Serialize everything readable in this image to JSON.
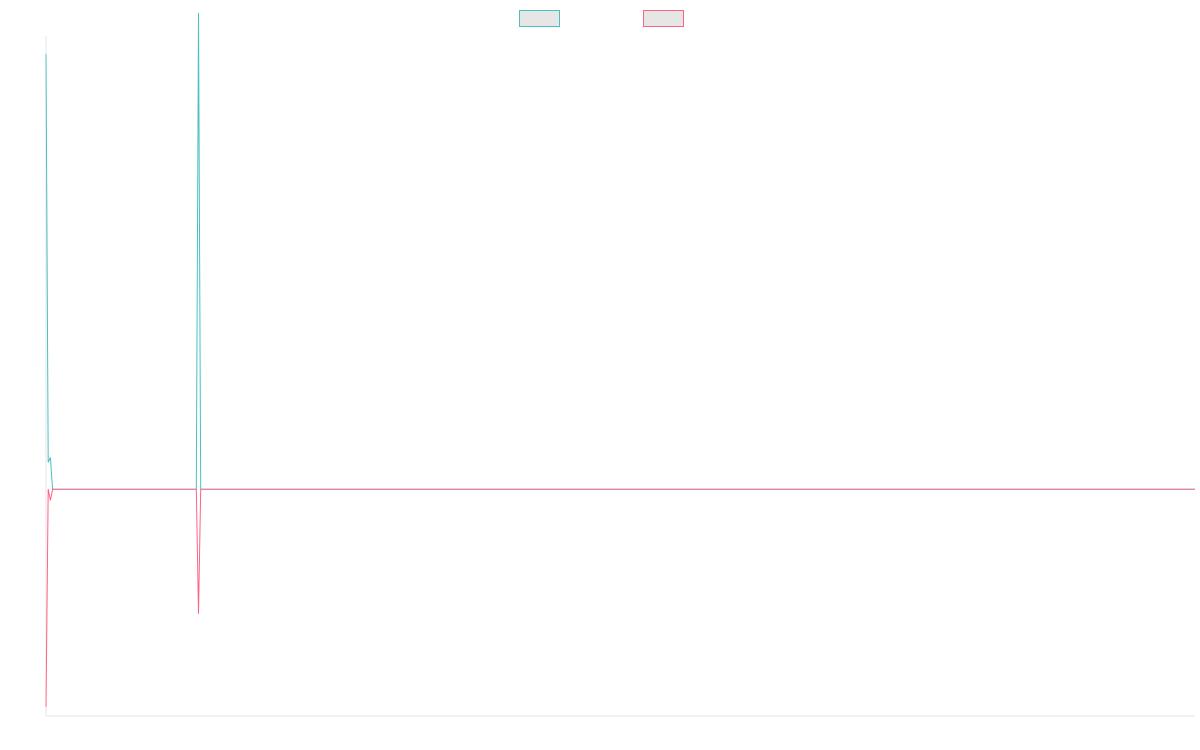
{
  "chart_data": {
    "type": "line",
    "title": "",
    "xlabel": "",
    "ylabel": "",
    "xlim": [
      0,
      260
    ],
    "ylim": [
      -250,
      500
    ],
    "grid": false,
    "legend": {
      "placement": "top-center"
    },
    "series": [
      {
        "color": "#4bc0c0",
        "fill": "#e6e6e6",
        "points": [
          [
            0,
            480
          ],
          [
            0.5,
            30
          ],
          [
            1,
            35
          ],
          [
            1.5,
            0
          ],
          [
            34,
            0
          ],
          [
            34.5,
            525
          ],
          [
            35,
            0
          ],
          [
            260,
            0
          ]
        ]
      },
      {
        "color": "#ff6384",
        "fill": "#e6e6e6",
        "points": [
          [
            0,
            -240
          ],
          [
            0.5,
            0
          ],
          [
            1,
            -12
          ],
          [
            1.5,
            0
          ],
          [
            34,
            0
          ],
          [
            34.5,
            -137
          ],
          [
            35,
            0
          ],
          [
            260,
            0
          ]
        ]
      }
    ]
  }
}
